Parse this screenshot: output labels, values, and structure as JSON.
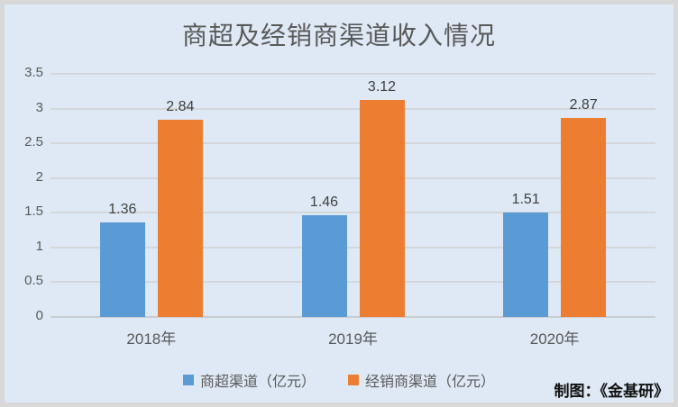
{
  "chart_data": {
    "type": "bar",
    "title": "商超及经销商渠道收入情况",
    "categories": [
      "2018年",
      "2019年",
      "2020年"
    ],
    "series": [
      {
        "name": "商超渠道（亿元）",
        "color": "#5B9BD5",
        "values": [
          1.36,
          1.46,
          1.51
        ]
      },
      {
        "name": "经销商渠道（亿元）",
        "color": "#ED7D31",
        "values": [
          2.84,
          3.12,
          2.87
        ]
      }
    ],
    "ylim": [
      0,
      3.5
    ],
    "yticks": [
      "0",
      "0.5",
      "1",
      "1.5",
      "2",
      "2.5",
      "3",
      "3.5"
    ],
    "grid": true,
    "legend_position": "bottom",
    "value_labels": true
  },
  "credit": "制图：《金基研》",
  "colors": {
    "background": "#dee9f5",
    "frame": "#d8d8d8",
    "gridline": "#d4d7da",
    "text": "#595959"
  }
}
